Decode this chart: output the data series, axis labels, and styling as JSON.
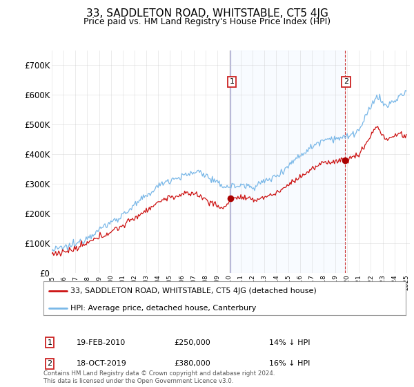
{
  "title": "33, SADDLETON ROAD, WHITSTABLE, CT5 4JG",
  "subtitle": "Price paid vs. HM Land Registry's House Price Index (HPI)",
  "ylim": [
    0,
    750000
  ],
  "yticks": [
    0,
    100000,
    200000,
    300000,
    400000,
    500000,
    600000,
    700000
  ],
  "ytick_labels": [
    "£0",
    "£100K",
    "£200K",
    "£300K",
    "£400K",
    "£500K",
    "£600K",
    "£700K"
  ],
  "hpi_color": "#7ab8e8",
  "sale_color": "#cc1111",
  "vline1_color": "#aaaacc",
  "vline2_color": "#cc3333",
  "shade_color": "#ddeeff",
  "point_color": "#aa0000",
  "legend_label_sale": "33, SADDLETON ROAD, WHITSTABLE, CT5 4JG (detached house)",
  "legend_label_hpi": "HPI: Average price, detached house, Canterbury",
  "annotation1_label": "1",
  "annotation2_label": "2",
  "annotation1_date": "19-FEB-2010",
  "annotation1_price": "£250,000",
  "annotation1_pct": "14% ↓ HPI",
  "annotation2_date": "18-OCT-2019",
  "annotation2_price": "£380,000",
  "annotation2_pct": "16% ↓ HPI",
  "footer": "Contains HM Land Registry data © Crown copyright and database right 2024.\nThis data is licensed under the Open Government Licence v3.0.",
  "sale1_year": 2010.13,
  "sale1_price": 250000,
  "sale2_year": 2019.8,
  "sale2_price": 380000,
  "vline1_x": 2010.13,
  "vline2_x": 2019.8,
  "background_color": "#ffffff",
  "grid_color": "#cccccc",
  "xlim_start": 1995,
  "xlim_end": 2025.3
}
